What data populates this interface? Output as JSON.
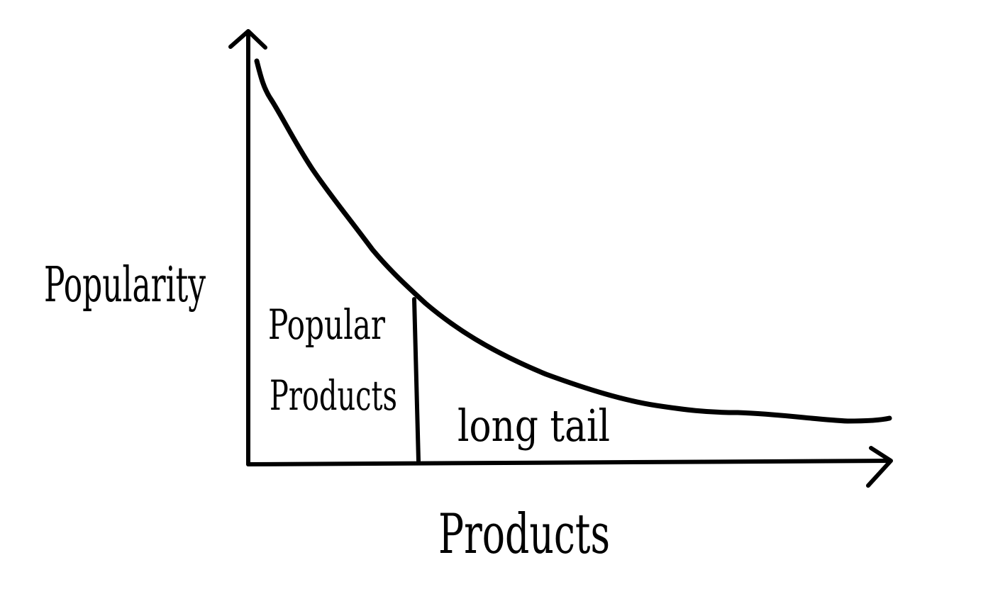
{
  "diagram": {
    "y_axis_label": "Popularity",
    "x_axis_label": "Products",
    "head_region_label_line1": "Popular",
    "head_region_label_line2": "Products",
    "tail_region_label": "long tail",
    "ink_color": "#000000",
    "background_color": "#ffffff"
  }
}
